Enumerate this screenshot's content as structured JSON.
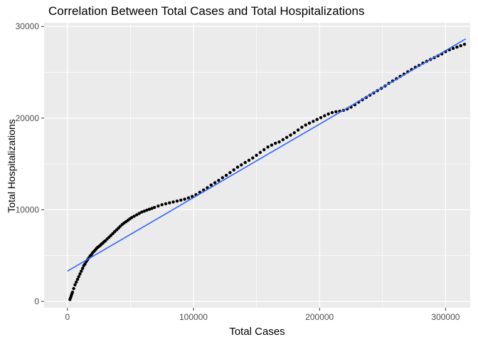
{
  "chart_data": {
    "type": "scatter",
    "title": "Correlation Between Total Cases and Total Hospitalizations",
    "xlabel": "Total Cases",
    "ylabel": "Total Hospitalizations",
    "x_ticks": [
      0,
      100000,
      200000,
      300000
    ],
    "x_tick_labels": [
      "0",
      "100000",
      "200000",
      "300000"
    ],
    "x_minor_ticks": [
      50000,
      150000,
      250000
    ],
    "y_ticks": [
      0,
      10000,
      20000,
      30000
    ],
    "y_tick_labels": [
      "0",
      "10000",
      "20000",
      "30000"
    ],
    "y_minor_ticks": [
      5000,
      15000,
      25000
    ],
    "xlim": [
      -18500,
      319500
    ],
    "ylim": [
      -700,
      30400
    ],
    "grid": "major and minor white gridlines on gray panel",
    "legend": "none",
    "panel_bg": "#EBEBEB",
    "grid_color": "#FFFFFF",
    "point_color": "#000000",
    "tick_label_color": "#4D4D4D",
    "tick_mark_color": "#333333",
    "trend_line": {
      "color": "#3366FF",
      "x": [
        0,
        316000
      ],
      "y": [
        3300,
        28650
      ]
    },
    "points": [
      [
        2000,
        200
      ],
      [
        2500,
        400
      ],
      [
        3000,
        600
      ],
      [
        3500,
        800
      ],
      [
        4000,
        1000
      ],
      [
        5000,
        1400
      ],
      [
        6000,
        1800
      ],
      [
        7000,
        2100
      ],
      [
        8000,
        2400
      ],
      [
        9000,
        2700
      ],
      [
        10000,
        3000
      ],
      [
        11000,
        3300
      ],
      [
        12000,
        3600
      ],
      [
        13000,
        3900
      ],
      [
        14000,
        4100
      ],
      [
        15000,
        4350
      ],
      [
        16000,
        4550
      ],
      [
        17000,
        4750
      ],
      [
        18000,
        4950
      ],
      [
        19000,
        5100
      ],
      [
        20000,
        5300
      ],
      [
        21000,
        5450
      ],
      [
        22000,
        5600
      ],
      [
        23000,
        5750
      ],
      [
        24000,
        5900
      ],
      [
        25000,
        6000
      ],
      [
        26000,
        6100
      ],
      [
        27000,
        6250
      ],
      [
        28000,
        6350
      ],
      [
        29000,
        6500
      ],
      [
        30000,
        6600
      ],
      [
        31500,
        6800
      ],
      [
        33000,
        7000
      ],
      [
        34500,
        7200
      ],
      [
        36000,
        7400
      ],
      [
        37500,
        7600
      ],
      [
        39000,
        7800
      ],
      [
        40500,
        8000
      ],
      [
        42000,
        8200
      ],
      [
        43500,
        8400
      ],
      [
        45000,
        8550
      ],
      [
        46500,
        8700
      ],
      [
        48000,
        8850
      ],
      [
        49500,
        9000
      ],
      [
        51000,
        9150
      ],
      [
        53000,
        9300
      ],
      [
        55000,
        9450
      ],
      [
        57000,
        9600
      ],
      [
        59000,
        9750
      ],
      [
        61000,
        9850
      ],
      [
        63000,
        9950
      ],
      [
        65000,
        10050
      ],
      [
        67000,
        10150
      ],
      [
        69000,
        10250
      ],
      [
        72000,
        10400
      ],
      [
        75000,
        10550
      ],
      [
        78000,
        10650
      ],
      [
        81000,
        10750
      ],
      [
        84000,
        10850
      ],
      [
        87000,
        10950
      ],
      [
        90000,
        11050
      ],
      [
        93000,
        11150
      ],
      [
        96000,
        11300
      ],
      [
        99000,
        11450
      ],
      [
        102000,
        11650
      ],
      [
        105000,
        11900
      ],
      [
        108000,
        12150
      ],
      [
        111000,
        12400
      ],
      [
        114000,
        12700
      ],
      [
        117000,
        12950
      ],
      [
        120000,
        13200
      ],
      [
        123000,
        13500
      ],
      [
        126000,
        13750
      ],
      [
        129000,
        14050
      ],
      [
        132000,
        14350
      ],
      [
        135000,
        14650
      ],
      [
        138000,
        14900
      ],
      [
        141000,
        15150
      ],
      [
        144000,
        15400
      ],
      [
        147000,
        15650
      ],
      [
        150000,
        15950
      ],
      [
        153000,
        16250
      ],
      [
        156000,
        16550
      ],
      [
        159000,
        16850
      ],
      [
        162000,
        17050
      ],
      [
        165000,
        17250
      ],
      [
        168000,
        17400
      ],
      [
        171000,
        17650
      ],
      [
        174000,
        17900
      ],
      [
        177000,
        18150
      ],
      [
        180000,
        18400
      ],
      [
        183000,
        18700
      ],
      [
        186000,
        19000
      ],
      [
        189000,
        19250
      ],
      [
        192000,
        19450
      ],
      [
        195000,
        19650
      ],
      [
        198000,
        19850
      ],
      [
        201000,
        20050
      ],
      [
        204000,
        20250
      ],
      [
        207000,
        20450
      ],
      [
        210000,
        20600
      ],
      [
        213000,
        20700
      ],
      [
        216000,
        20750
      ],
      [
        219000,
        20850
      ],
      [
        222000,
        21000
      ],
      [
        225000,
        21200
      ],
      [
        228000,
        21450
      ],
      [
        231000,
        21750
      ],
      [
        234000,
        22000
      ],
      [
        237000,
        22250
      ],
      [
        240000,
        22500
      ],
      [
        243000,
        22750
      ],
      [
        246000,
        23000
      ],
      [
        249000,
        23250
      ],
      [
        252000,
        23500
      ],
      [
        255000,
        23800
      ],
      [
        258000,
        24050
      ],
      [
        261000,
        24300
      ],
      [
        264000,
        24550
      ],
      [
        267000,
        24800
      ],
      [
        270000,
        25050
      ],
      [
        273000,
        25300
      ],
      [
        276000,
        25550
      ],
      [
        279000,
        25750
      ],
      [
        282000,
        26000
      ],
      [
        285000,
        26200
      ],
      [
        288000,
        26400
      ],
      [
        291000,
        26600
      ],
      [
        294000,
        26800
      ],
      [
        297000,
        27000
      ],
      [
        300000,
        27250
      ],
      [
        303000,
        27450
      ],
      [
        306000,
        27600
      ],
      [
        309000,
        27750
      ],
      [
        312000,
        27900
      ],
      [
        315000,
        28050
      ]
    ]
  }
}
